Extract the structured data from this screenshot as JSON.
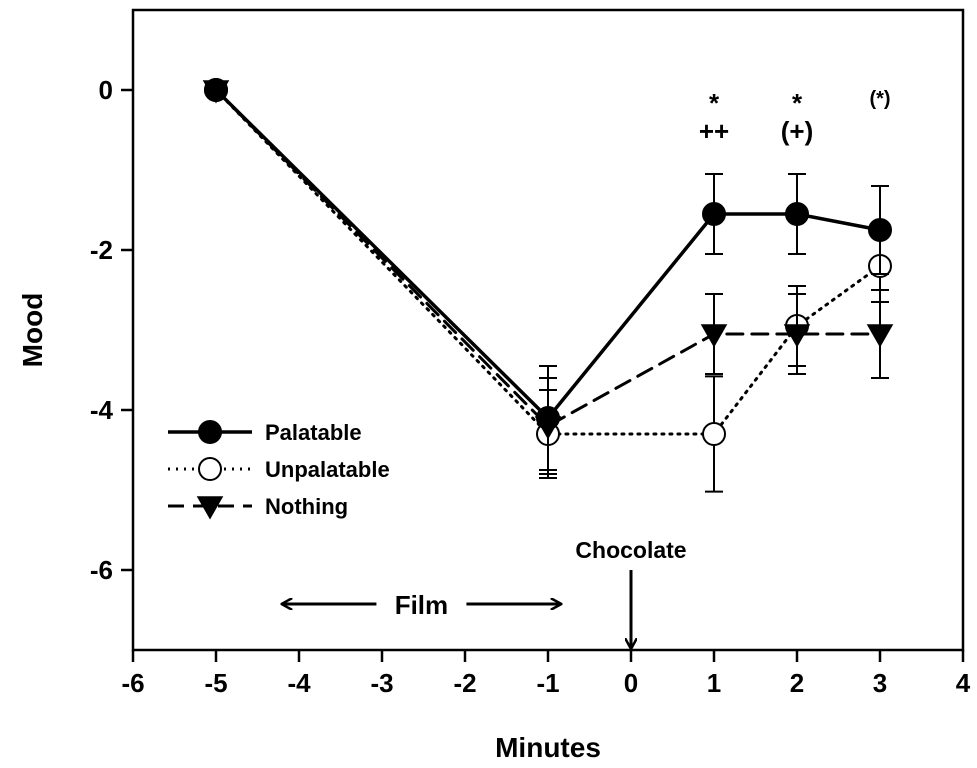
{
  "chart_data": {
    "type": "line",
    "xlabel": "Minutes",
    "ylabel": "Mood",
    "xlim": [
      -6,
      4
    ],
    "ylim": [
      -7,
      1
    ],
    "xticks": [
      -6,
      -5,
      -4,
      -3,
      -2,
      -1,
      0,
      1,
      2,
      3,
      4
    ],
    "yticks": [
      0,
      -2,
      -4,
      -6
    ],
    "xtick_labels": [
      "-6",
      "-5",
      "-4",
      "-3",
      "-2",
      "-1",
      "0",
      "1",
      "2",
      "3",
      "4"
    ],
    "ytick_labels": [
      "0",
      "-2",
      "-4",
      "-6"
    ],
    "grid": false,
    "legend_position": "lower-left",
    "series": [
      {
        "name": "Palatable",
        "x": [
          -5,
          -1,
          1,
          2,
          3
        ],
        "y": [
          0,
          -4.1,
          -1.55,
          -1.55,
          -1.75
        ],
        "error": [
          0,
          0.65,
          0.5,
          0.5,
          0.55
        ],
        "line_style": "solid",
        "marker": "filled-circle",
        "color": "#000000"
      },
      {
        "name": "Unpalatable",
        "x": [
          -5,
          -1,
          1,
          2,
          3
        ],
        "y": [
          0,
          -4.3,
          -4.3,
          -2.95,
          -2.2
        ],
        "error": [
          0,
          0.55,
          0.72,
          0.5,
          0.45
        ],
        "line_style": "dotted",
        "marker": "open-circle",
        "color": "#000000"
      },
      {
        "name": "Nothing",
        "x": [
          -5,
          -1,
          1,
          2,
          3
        ],
        "y": [
          0,
          -4.2,
          -3.05,
          -3.05,
          -3.05
        ],
        "error": [
          0,
          0.6,
          0.5,
          0.5,
          0.55
        ],
        "line_style": "dashed",
        "marker": "filled-triangle-down",
        "color": "#000000"
      }
    ],
    "annotations": [
      {
        "x": 1,
        "top": "*",
        "bottom": "++"
      },
      {
        "x": 2,
        "top": "*",
        "bottom": "(+)"
      },
      {
        "x": 3,
        "top": "(*)",
        "bottom": ""
      }
    ],
    "events": {
      "film_label": "Film",
      "film_range": [
        -4.2,
        -0.85
      ],
      "chocolate_label": "Chocolate",
      "chocolate_x": 0
    }
  }
}
